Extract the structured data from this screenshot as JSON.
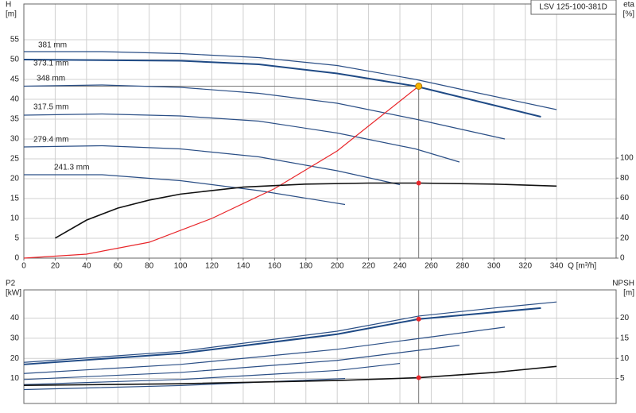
{
  "chart_data": [
    {
      "type": "line",
      "title": "LSV 125-100-381D",
      "ylabel": "H",
      "yunit": "[m]",
      "y2label": "eta",
      "y2unit": "[%]",
      "xlabel": "Q [m³/h]",
      "xlim": [
        0,
        378
      ],
      "xticks": [
        0,
        20,
        40,
        60,
        80,
        100,
        120,
        140,
        160,
        180,
        200,
        220,
        240,
        260,
        280,
        300,
        320,
        340
      ],
      "ylim": [
        0,
        64
      ],
      "yticks": [
        0,
        5,
        10,
        15,
        20,
        25,
        30,
        35,
        40,
        45,
        50,
        55
      ],
      "y2lim": [
        0,
        254
      ],
      "y2ticks": [
        0,
        20,
        40,
        60,
        80,
        100
      ],
      "grid": true,
      "series": [
        {
          "name": "381 mm",
          "color": "#2b4f86",
          "x": [
            0,
            50,
            100,
            150,
            200,
            250,
            285,
            340
          ],
          "values": [
            52,
            52,
            51.5,
            50.5,
            48.5,
            45,
            42,
            37.4
          ]
        },
        {
          "name": "373.1 mm",
          "color": "#1f4a85",
          "x": [
            0,
            100,
            150,
            200,
            250,
            300,
            330
          ],
          "values": [
            50,
            49.7,
            48.8,
            46.5,
            43.3,
            38.5,
            35.6
          ]
        },
        {
          "name": "348 mm",
          "color": "#2b4f86",
          "x": [
            0,
            50,
            100,
            150,
            200,
            250,
            307
          ],
          "values": [
            43.3,
            43.6,
            43,
            41.5,
            39,
            35,
            30
          ]
        },
        {
          "name": "317.5 mm",
          "color": "#2b4f86",
          "x": [
            0,
            50,
            100,
            150,
            200,
            250,
            278
          ],
          "values": [
            36,
            36.3,
            35.8,
            34.5,
            31.5,
            27.5,
            24.2
          ]
        },
        {
          "name": "279.4 mm",
          "color": "#2b4f86",
          "x": [
            0,
            50,
            100,
            150,
            200,
            240
          ],
          "values": [
            28,
            28.3,
            27.5,
            25.5,
            22,
            18.5
          ]
        },
        {
          "name": "241.3 mm",
          "color": "#2b4f86",
          "x": [
            0,
            50,
            100,
            150,
            205
          ],
          "values": [
            21,
            21,
            19.5,
            17,
            13.5
          ]
        },
        {
          "color": "#e8262a",
          "x": [
            0,
            40,
            80,
            120,
            160,
            200,
            252
          ],
          "values": [
            0,
            1,
            4,
            10,
            17.5,
            27,
            43.3
          ]
        },
        {
          "color": "#111111",
          "axis": "y2",
          "x": [
            20,
            40,
            60,
            80,
            100,
            140,
            180,
            220,
            252,
            300,
            340
          ],
          "values": [
            20,
            38,
            50,
            58,
            64,
            71,
            74,
            75,
            75,
            74,
            72
          ]
        }
      ],
      "points": [
        {
          "x": 252,
          "y": 43.3,
          "color": "#f5b400"
        },
        {
          "x": 252,
          "y": 75,
          "axis": "y2",
          "color": "#e8262a"
        }
      ]
    },
    {
      "type": "line",
      "ylabel": "P2",
      "yunit": "[kW]",
      "y2label": "NPSH",
      "y2unit": "[m]",
      "xlim": [
        0,
        378
      ],
      "ylim": [
        -2.4,
        54
      ],
      "yticks": [
        10,
        20,
        30,
        40
      ],
      "y2lim": [
        -1.2,
        27
      ],
      "y2ticks": [
        5,
        10,
        15,
        20
      ],
      "grid": true,
      "series": [
        {
          "color": "#2b4f86",
          "x": [
            0,
            100,
            200,
            252,
            300,
            340
          ],
          "values": [
            18,
            23.5,
            33.5,
            41,
            45,
            48
          ]
        },
        {
          "color": "#1f4a85",
          "x": [
            0,
            100,
            200,
            252,
            330
          ],
          "values": [
            17,
            22.5,
            32,
            39.5,
            45
          ]
        },
        {
          "color": "#2b4f86",
          "x": [
            0,
            100,
            200,
            307
          ],
          "values": [
            12.5,
            17,
            24.5,
            35.5
          ]
        },
        {
          "color": "#2b4f86",
          "x": [
            0,
            100,
            200,
            278
          ],
          "values": [
            9.5,
            13,
            19,
            26.5
          ]
        },
        {
          "color": "#2b4f86",
          "x": [
            0,
            100,
            200,
            240
          ],
          "values": [
            7,
            9.5,
            14,
            17.5
          ]
        },
        {
          "color": "#2b4f86",
          "x": [
            0,
            100,
            205
          ],
          "values": [
            4.5,
            6.5,
            10
          ]
        },
        {
          "color": "#111111",
          "axis": "y2",
          "x": [
            0,
            100,
            200,
            252,
            300,
            340
          ],
          "values": [
            3.3,
            3.7,
            4.5,
            5.2,
            6.5,
            8
          ]
        }
      ],
      "points": [
        {
          "x": 252,
          "y": 39.5,
          "color": "#e8262a"
        },
        {
          "x": 252,
          "y": 5.2,
          "axis": "y2",
          "color": "#e8262a"
        }
      ]
    }
  ]
}
